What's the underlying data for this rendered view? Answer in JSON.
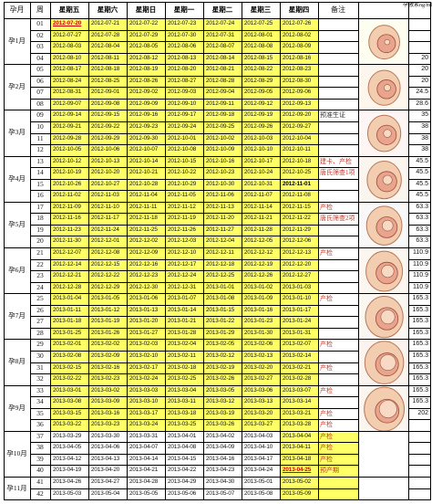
{
  "header": {
    "month_col": "孕月",
    "week_col": "周",
    "days": [
      "星期五",
      "星期六",
      "星期日",
      "星期一",
      "星期二",
      "星期三",
      "星期四"
    ],
    "note_col": "备注",
    "hcg_col": "孕激素ng/ml"
  },
  "months": [
    {
      "label": "孕1月",
      "start": 0,
      "count": 4,
      "tint": "#fdfdf0"
    },
    {
      "label": "孕2月",
      "start": 4,
      "count": 4,
      "tint": "#fdf6ec"
    },
    {
      "label": "孕3月",
      "start": 8,
      "count": 4,
      "tint": "#fdf6f4"
    },
    {
      "label": "孕4月",
      "start": 12,
      "count": 4,
      "tint": "#fbf5ef"
    },
    {
      "label": "孕5月",
      "start": 16,
      "count": 4,
      "tint": "#f8f8f8"
    },
    {
      "label": "孕6月",
      "start": 20,
      "count": 4,
      "tint": "#fbf6ef"
    },
    {
      "label": "孕7月",
      "start": 24,
      "count": 4,
      "tint": "#faf6f2"
    },
    {
      "label": "孕8月",
      "start": 28,
      "count": 4,
      "tint": "#fbf4ee"
    },
    {
      "label": "孕9月",
      "start": 32,
      "count": 4,
      "tint": "#fbf5f0"
    },
    {
      "label": "孕10月",
      "start": 36,
      "count": 4,
      "tint": ""
    },
    {
      "label": "孕11月",
      "start": 40,
      "count": 2,
      "tint": ""
    }
  ],
  "weeks": [
    {
      "wk": "01",
      "dates": [
        "2012-07-20",
        "2012-07-21",
        "2012-07-22",
        "2012-07-23",
        "2012-07-24",
        "2012-07-25",
        "2012-07-26"
      ],
      "note": "",
      "hcg": ""
    },
    {
      "wk": "02",
      "dates": [
        "2012-07-27",
        "2012-07-28",
        "2012-07-29",
        "2012-07-30",
        "2012-07-31",
        "2012-08-01",
        "2012-08-02"
      ],
      "note": "",
      "hcg": ""
    },
    {
      "wk": "03",
      "dates": [
        "2012-08-03",
        "2012-08-04",
        "2012-08-05",
        "2012-08-06",
        "2012-08-07",
        "2012-08-08",
        "2012-08-09"
      ],
      "note": "",
      "hcg": ""
    },
    {
      "wk": "04",
      "dates": [
        "2012-08-10",
        "2012-08-11",
        "2012-08-12",
        "2012-08-13",
        "2012-08-14",
        "2012-08-15",
        "2012-08-16"
      ],
      "note": "",
      "hcg": "20"
    },
    {
      "wk": "05",
      "dates": [
        "2012-08-17",
        "2012-08-18",
        "2012-08-19",
        "2012-08-20",
        "2012-08-21",
        "2012-08-22",
        "2012-08-23"
      ],
      "note": "",
      "hcg": "20"
    },
    {
      "wk": "06",
      "dates": [
        "2012-08-24",
        "2012-08-25",
        "2012-08-26",
        "2012-08-27",
        "2012-08-28",
        "2012-08-29",
        "2012-08-30"
      ],
      "note": "",
      "hcg": "20"
    },
    {
      "wk": "07",
      "dates": [
        "2012-08-31",
        "2012-09-01",
        "2012-09-02",
        "2012-09-03",
        "2012-09-04",
        "2012-09-05",
        "2012-09-06"
      ],
      "note": "",
      "hcg": "24.5"
    },
    {
      "wk": "08",
      "dates": [
        "2012-09-07",
        "2012-09-08",
        "2012-09-09",
        "2012-09-10",
        "2012-09-11",
        "2012-09-12",
        "2012-09-13"
      ],
      "note": "",
      "hcg": "28.6"
    },
    {
      "wk": "09",
      "dates": [
        "2012-09-14",
        "2012-09-15",
        "2012-09-16",
        "2012-09-17",
        "2012-09-18",
        "2012-09-19",
        "2012-09-20"
      ],
      "note": "预准生证",
      "hcg": "35"
    },
    {
      "wk": "10",
      "dates": [
        "2012-09-21",
        "2012-09-22",
        "2012-09-23",
        "2012-09-24",
        "2012-09-25",
        "2012-09-26",
        "2012-09-27"
      ],
      "note": "",
      "hcg": "38"
    },
    {
      "wk": "11",
      "dates": [
        "2012-09-28",
        "2012-09-29",
        "2012-09-30",
        "2012-10-01",
        "2012-10-02",
        "2012-10-03",
        "2012-10-04"
      ],
      "note": "",
      "hcg": "38"
    },
    {
      "wk": "12",
      "dates": [
        "2012-10-05",
        "2012-10-06",
        "2012-10-07",
        "2012-10-08",
        "2012-10-09",
        "2012-10-10",
        "2012-10-11"
      ],
      "note": "",
      "hcg": "38"
    },
    {
      "wk": "13",
      "dates": [
        "2012-10-12",
        "2012-10-13",
        "2012-10-14",
        "2012-10-15",
        "2012-10-16",
        "2012-10-17",
        "2012-10-18"
      ],
      "note": "建卡、产检",
      "hcg": "45.5"
    },
    {
      "wk": "14",
      "dates": [
        "2012-10-19",
        "2012-10-20",
        "2012-10-21",
        "2012-10-22",
        "2012-10-23",
        "2012-10-24",
        "2012-10-25"
      ],
      "note": "唐氏筛查1项",
      "hcg": "45.5"
    },
    {
      "wk": "15",
      "dates": [
        "2012-10-26",
        "2012-10-27",
        "2012-10-28",
        "2012-10-29",
        "2012-10-30",
        "2012-10-31",
        "2012-11-01"
      ],
      "note": "",
      "hcg": "45.5"
    },
    {
      "wk": "16",
      "dates": [
        "2012-11-02",
        "2012-11-03",
        "2012-11-04",
        "2012-11-05",
        "2012-11-06",
        "2012-11-07",
        "2012-11-08"
      ],
      "note": "",
      "hcg": "45.5"
    },
    {
      "wk": "17",
      "dates": [
        "2012-11-09",
        "2012-11-10",
        "2012-11-11",
        "2012-11-12",
        "2012-11-13",
        "2012-11-14",
        "2012-11-15"
      ],
      "note": "产检",
      "hcg": "63.3"
    },
    {
      "wk": "18",
      "dates": [
        "2012-11-16",
        "2012-11-17",
        "2012-11-18",
        "2012-11-19",
        "2012-11-20",
        "2012-11-21",
        "2012-11-22"
      ],
      "note": "唐氏筛查2项",
      "hcg": "63.3"
    },
    {
      "wk": "19",
      "dates": [
        "2012-11-23",
        "2012-11-24",
        "2012-11-25",
        "2012-11-26",
        "2012-11-27",
        "2012-11-28",
        "2012-11-29"
      ],
      "note": "",
      "hcg": "63.3"
    },
    {
      "wk": "20",
      "dates": [
        "2012-11-30",
        "2012-12-01",
        "2012-12-02",
        "2012-12-03",
        "2012-12-04",
        "2012-12-05",
        "2012-12-06"
      ],
      "note": "",
      "hcg": "63.3"
    },
    {
      "wk": "21",
      "dates": [
        "2012-12-07",
        "2012-12-08",
        "2012-12-09",
        "2012-12-10",
        "2012-12-11",
        "2012-12-12",
        "2012-12-13"
      ],
      "note": "产检",
      "hcg": "110.9"
    },
    {
      "wk": "22",
      "dates": [
        "2012-12-14",
        "2012-12-15",
        "2012-12-16",
        "2012-12-17",
        "2012-12-18",
        "2012-12-19",
        "2012-12-20"
      ],
      "note": "",
      "hcg": "110.9"
    },
    {
      "wk": "23",
      "dates": [
        "2012-12-21",
        "2012-12-22",
        "2012-12-23",
        "2012-12-24",
        "2012-12-25",
        "2012-12-26",
        "2012-12-27"
      ],
      "note": "",
      "hcg": "110.9"
    },
    {
      "wk": "24",
      "dates": [
        "2012-12-28",
        "2012-12-29",
        "2012-12-30",
        "2012-12-31",
        "2013-01-01",
        "2013-01-02",
        "2013-01-03"
      ],
      "note": "",
      "hcg": "110.9"
    },
    {
      "wk": "25",
      "dates": [
        "2013-01-04",
        "2013-01-05",
        "2013-01-06",
        "2013-01-07",
        "2013-01-08",
        "2013-01-09",
        "2013-01-10"
      ],
      "note": "产检",
      "hcg": "165.3"
    },
    {
      "wk": "26",
      "dates": [
        "2013-01-11",
        "2013-01-12",
        "2013-01-13",
        "2013-01-14",
        "2013-01-15",
        "2013-01-16",
        "2013-01-17"
      ],
      "note": "",
      "hcg": "165.3"
    },
    {
      "wk": "27",
      "dates": [
        "2013-01-18",
        "2013-01-19",
        "2013-01-20",
        "2013-01-21",
        "2013-01-22",
        "2013-01-23",
        "2013-01-24"
      ],
      "note": "",
      "hcg": "165.3"
    },
    {
      "wk": "28",
      "dates": [
        "2013-01-25",
        "2013-01-26",
        "2013-01-27",
        "2013-01-28",
        "2013-01-29",
        "2013-01-30",
        "2013-01-31"
      ],
      "note": "",
      "hcg": "165.3"
    },
    {
      "wk": "29",
      "dates": [
        "2013-02-01",
        "2013-02-02",
        "2013-02-03",
        "2013-02-04",
        "2013-02-05",
        "2013-02-06",
        "2013-02-07"
      ],
      "note": "产检",
      "hcg": "165.3"
    },
    {
      "wk": "30",
      "dates": [
        "2013-02-08",
        "2013-02-09",
        "2013-02-10",
        "2013-02-11",
        "2013-02-12",
        "2013-02-13",
        "2013-02-14"
      ],
      "note": "",
      "hcg": "165.3"
    },
    {
      "wk": "31",
      "dates": [
        "2013-02-15",
        "2013-02-16",
        "2013-02-17",
        "2013-02-18",
        "2013-02-19",
        "2013-02-20",
        "2013-02-21"
      ],
      "note": "产检",
      "hcg": "165.3"
    },
    {
      "wk": "32",
      "dates": [
        "2013-02-22",
        "2013-02-23",
        "2013-02-24",
        "2013-02-25",
        "2013-02-26",
        "2013-02-27",
        "2013-02-28"
      ],
      "note": "",
      "hcg": "165.3"
    },
    {
      "wk": "33",
      "dates": [
        "2013-03-01",
        "2013-03-02",
        "2013-03-03",
        "2013-03-04",
        "2013-03-05",
        "2013-03-06",
        "2013-03-07"
      ],
      "note": "产检",
      "hcg": "165.3"
    },
    {
      "wk": "34",
      "dates": [
        "2013-03-08",
        "2013-03-09",
        "2013-03-10",
        "2013-03-11",
        "2013-03-12",
        "2013-03-13",
        "2013-03-14"
      ],
      "note": "",
      "hcg": "165.3"
    },
    {
      "wk": "35",
      "dates": [
        "2013-03-15",
        "2013-03-16",
        "2013-03-17",
        "2013-03-18",
        "2013-03-19",
        "2013-03-20",
        "2013-03-21"
      ],
      "note": "产检",
      "hcg": "202"
    },
    {
      "wk": "36",
      "dates": [
        "2013-03-22",
        "2013-03-23",
        "2013-03-24",
        "2013-03-25",
        "2013-03-26",
        "2013-03-27",
        "2013-03-28"
      ],
      "note": "产检",
      "hcg": ""
    },
    {
      "wk": "37",
      "dates": [
        "2013-03-29",
        "2013-03-30",
        "2013-03-31",
        "2013-04-01",
        "2013-04-02",
        "2013-04-03",
        "2013-04-04"
      ],
      "note": "产检",
      "hcg": ""
    },
    {
      "wk": "38",
      "dates": [
        "2013-04-05",
        "2013-04-06",
        "2013-04-07",
        "2013-04-08",
        "2013-04-09",
        "2013-04-10",
        "2013-04-11"
      ],
      "note": "产检",
      "hcg": ""
    },
    {
      "wk": "39",
      "dates": [
        "2013-04-12",
        "2013-04-13",
        "2013-04-14",
        "2013-04-15",
        "2013-04-16",
        "2013-04-17",
        "2013-04-18"
      ],
      "note": "产检",
      "hcg": ""
    },
    {
      "wk": "40",
      "dates": [
        "2013-04-19",
        "2013-04-20",
        "2013-04-21",
        "2013-04-22",
        "2013-04-23",
        "2013-04-24",
        "2013-04-25"
      ],
      "note": "预产期",
      "hcg": ""
    },
    {
      "wk": "41",
      "dates": [
        "2013-04-26",
        "2013-04-27",
        "2013-04-28",
        "2013-04-29",
        "2013-04-30",
        "2013-05-01",
        "2013-05-02"
      ],
      "note": "",
      "hcg": ""
    },
    {
      "wk": "42",
      "dates": [
        "2013-05-03",
        "2013-05-04",
        "2013-05-05",
        "2013-05-06",
        "2013-05-07",
        "2013-05-08",
        "2013-05-09"
      ],
      "note": "",
      "hcg": ""
    }
  ],
  "styles": {
    "yellow": "#ffff66",
    "red_dates": [
      [
        0,
        0
      ],
      [
        39,
        6
      ]
    ],
    "bold_dates": [
      [
        14,
        6
      ]
    ],
    "no_yellow_rows": [
      36,
      37,
      38,
      39,
      40,
      41
    ],
    "right_yellow_rows": [
      36,
      37,
      38,
      39,
      40,
      41
    ]
  },
  "icons": [
    "fetus-illustration"
  ]
}
